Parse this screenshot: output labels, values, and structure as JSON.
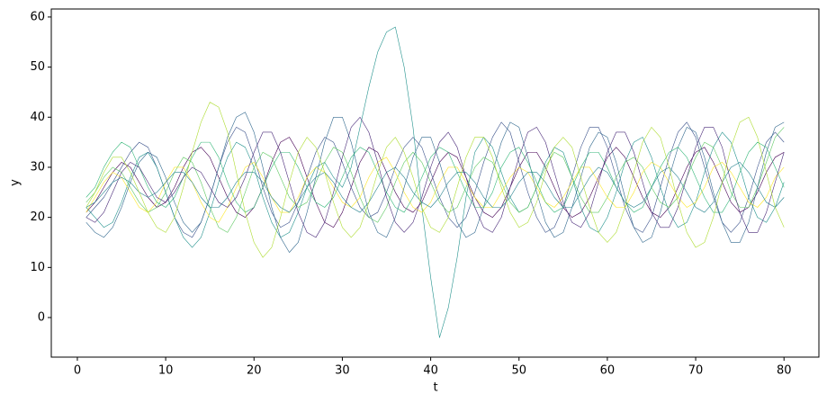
{
  "chart_data": {
    "type": "line",
    "xlabel": "t",
    "ylabel": "y",
    "xlim": [
      -2.95,
      83.95
    ],
    "ylim": [
      -7.9,
      61.6
    ],
    "xticks": [
      0,
      10,
      20,
      30,
      40,
      50,
      60,
      70,
      80
    ],
    "yticks": [
      0,
      10,
      20,
      30,
      40,
      50,
      60
    ],
    "x": [
      1,
      2,
      3,
      4,
      5,
      6,
      7,
      8,
      9,
      10,
      11,
      12,
      13,
      14,
      15,
      16,
      17,
      18,
      19,
      20,
      21,
      22,
      23,
      24,
      25,
      26,
      27,
      28,
      29,
      30,
      31,
      32,
      33,
      34,
      35,
      36,
      37,
      38,
      39,
      40,
      41,
      42,
      43,
      44,
      45,
      46,
      47,
      48,
      49,
      50,
      51,
      52,
      53,
      54,
      55,
      56,
      57,
      58,
      59,
      60,
      61,
      62,
      63,
      64,
      65,
      66,
      67,
      68,
      69,
      70,
      71,
      72,
      73,
      74,
      75,
      76,
      77,
      78,
      79,
      80
    ],
    "series": [
      {
        "color": "#440154",
        "values": [
          21,
          23,
          26,
          29,
          31,
          30,
          27,
          24,
          22,
          23,
          26,
          30,
          33,
          34,
          32,
          28,
          24,
          21,
          20,
          22,
          26,
          31,
          35,
          36,
          33,
          28,
          23,
          19,
          18,
          21,
          26,
          31,
          34,
          33,
          29,
          25,
          22,
          21,
          23,
          27,
          31,
          33,
          32,
          28,
          24,
          21,
          20,
          22,
          26,
          30,
          33,
          33,
          30,
          26,
          22,
          20,
          21,
          24,
          28,
          32,
          34,
          32,
          28,
          24,
          21,
          20,
          22,
          26,
          30,
          33,
          34,
          31,
          27,
          23,
          21,
          22,
          25,
          29,
          32,
          33
        ]
      },
      {
        "color": "#3b528b",
        "values": [
          20,
          22,
          24,
          27,
          30,
          33,
          35,
          34,
          30,
          25,
          20,
          17,
          16,
          19,
          24,
          30,
          35,
          38,
          37,
          32,
          26,
          21,
          18,
          19,
          23,
          28,
          33,
          36,
          35,
          31,
          26,
          22,
          20,
          21,
          25,
          30,
          34,
          36,
          34,
          29,
          24,
          20,
          18,
          20,
          25,
          31,
          36,
          39,
          37,
          31,
          25,
          20,
          17,
          18,
          22,
          28,
          34,
          38,
          38,
          34,
          28,
          22,
          18,
          17,
          20,
          26,
          32,
          37,
          39,
          36,
          30,
          24,
          19,
          17,
          19,
          24,
          30,
          35,
          37,
          35
        ]
      },
      {
        "color": "#21918c",
        "values": [
          22,
          20,
          18,
          19,
          23,
          28,
          32,
          33,
          30,
          25,
          20,
          16,
          14,
          16,
          21,
          27,
          32,
          35,
          34,
          30,
          24,
          19,
          16,
          17,
          21,
          26,
          30,
          31,
          28,
          26,
          30,
          38,
          46,
          53,
          57,
          58,
          50,
          38,
          22,
          8,
          -4,
          2,
          12,
          24,
          33,
          36,
          34,
          29,
          24,
          21,
          22,
          26,
          31,
          34,
          33,
          28,
          22,
          18,
          17,
          20,
          25,
          31,
          35,
          36,
          32,
          26,
          21,
          18,
          19,
          23,
          29,
          34,
          37,
          35,
          30,
          24,
          20,
          19,
          22,
          27
        ]
      },
      {
        "color": "#5ec962",
        "values": [
          23,
          25,
          28,
          30,
          29,
          26,
          23,
          21,
          22,
          25,
          29,
          32,
          31,
          27,
          22,
          18,
          17,
          20,
          25,
          30,
          33,
          32,
          28,
          24,
          22,
          23,
          27,
          31,
          34,
          33,
          29,
          24,
          20,
          19,
          22,
          27,
          31,
          33,
          31,
          27,
          23,
          21,
          22,
          26,
          30,
          32,
          31,
          27,
          23,
          21,
          22,
          26,
          30,
          33,
          32,
          28,
          24,
          21,
          21,
          24,
          28,
          31,
          32,
          30,
          26,
          23,
          22,
          24,
          28,
          32,
          35,
          34,
          30,
          25,
          22,
          22,
          26,
          31,
          36,
          38
        ]
      },
      {
        "color": "#fde725",
        "values": [
          21,
          24,
          27,
          29,
          28,
          25,
          22,
          21,
          23,
          27,
          30,
          30,
          27,
          23,
          20,
          19,
          22,
          26,
          30,
          31,
          28,
          24,
          21,
          21,
          24,
          28,
          30,
          29,
          26,
          23,
          22,
          24,
          28,
          31,
          32,
          29,
          25,
          22,
          21,
          23,
          27,
          30,
          30,
          27,
          24,
          22,
          22,
          25,
          28,
          30,
          29,
          26,
          23,
          22,
          24,
          27,
          30,
          30,
          27,
          24,
          22,
          22,
          25,
          29,
          31,
          30,
          27,
          24,
          22,
          23,
          26,
          30,
          31,
          29,
          26,
          23,
          22,
          24,
          28,
          30
        ]
      },
      {
        "color": "#31688e",
        "values": [
          19,
          17,
          16,
          18,
          22,
          27,
          31,
          33,
          32,
          28,
          23,
          19,
          17,
          19,
          24,
          30,
          36,
          40,
          41,
          37,
          30,
          22,
          16,
          13,
          15,
          21,
          28,
          35,
          40,
          40,
          35,
          28,
          21,
          17,
          16,
          20,
          26,
          32,
          36,
          36,
          31,
          25,
          19,
          16,
          17,
          22,
          29,
          35,
          39,
          38,
          32,
          25,
          19,
          16,
          17,
          22,
          28,
          34,
          37,
          36,
          31,
          24,
          18,
          15,
          16,
          21,
          28,
          34,
          38,
          37,
          32,
          25,
          19,
          15,
          15,
          19,
          26,
          33,
          38,
          39
        ]
      },
      {
        "color": "#35b779",
        "values": [
          24,
          26,
          30,
          33,
          35,
          34,
          30,
          26,
          23,
          22,
          24,
          28,
          32,
          35,
          35,
          32,
          27,
          23,
          21,
          22,
          26,
          30,
          33,
          33,
          30,
          26,
          23,
          22,
          24,
          28,
          32,
          34,
          33,
          29,
          25,
          22,
          21,
          24,
          28,
          32,
          34,
          33,
          29,
          25,
          22,
          22,
          25,
          30,
          33,
          34,
          31,
          27,
          23,
          21,
          22,
          26,
          30,
          33,
          33,
          30,
          26,
          23,
          21,
          22,
          26,
          30,
          33,
          34,
          32,
          28,
          24,
          21,
          21,
          24,
          29,
          33,
          35,
          34,
          30,
          26
        ]
      },
      {
        "color": "#482878",
        "values": [
          20,
          19,
          21,
          25,
          29,
          31,
          30,
          27,
          24,
          23,
          25,
          28,
          30,
          29,
          26,
          23,
          22,
          24,
          28,
          33,
          37,
          37,
          33,
          27,
          21,
          17,
          16,
          19,
          25,
          32,
          38,
          40,
          37,
          31,
          24,
          19,
          17,
          19,
          24,
          30,
          35,
          37,
          34,
          28,
          22,
          18,
          17,
          20,
          26,
          32,
          37,
          38,
          35,
          29,
          23,
          19,
          18,
          21,
          27,
          33,
          37,
          37,
          33,
          27,
          21,
          18,
          18,
          22,
          28,
          34,
          38,
          38,
          34,
          27,
          21,
          17,
          17,
          21,
          27,
          33
        ]
      },
      {
        "color": "#26828e",
        "values": [
          22,
          23,
          25,
          27,
          28,
          27,
          25,
          24,
          25,
          27,
          29,
          29,
          27,
          24,
          22,
          22,
          24,
          27,
          29,
          29,
          27,
          24,
          22,
          21,
          23,
          26,
          28,
          29,
          27,
          24,
          22,
          21,
          23,
          26,
          29,
          30,
          28,
          25,
          23,
          22,
          24,
          27,
          29,
          29,
          27,
          24,
          22,
          22,
          24,
          27,
          29,
          29,
          27,
          24,
          22,
          22,
          25,
          28,
          30,
          29,
          26,
          23,
          22,
          23,
          26,
          29,
          30,
          28,
          25,
          22,
          21,
          23,
          27,
          30,
          31,
          29,
          26,
          23,
          22,
          24
        ]
      },
      {
        "color": "#addc30",
        "values": [
          22,
          25,
          29,
          32,
          32,
          29,
          25,
          21,
          18,
          17,
          20,
          26,
          33,
          39,
          43,
          42,
          37,
          29,
          21,
          15,
          12,
          14,
          20,
          27,
          33,
          36,
          34,
          29,
          23,
          18,
          16,
          18,
          23,
          29,
          34,
          36,
          33,
          28,
          22,
          18,
          17,
          20,
          26,
          32,
          36,
          36,
          32,
          26,
          21,
          18,
          19,
          23,
          29,
          34,
          36,
          34,
          28,
          22,
          17,
          15,
          17,
          22,
          29,
          35,
          38,
          36,
          30,
          23,
          17,
          14,
          15,
          20,
          27,
          34,
          39,
          40,
          36,
          29,
          22,
          18
        ]
      }
    ]
  }
}
